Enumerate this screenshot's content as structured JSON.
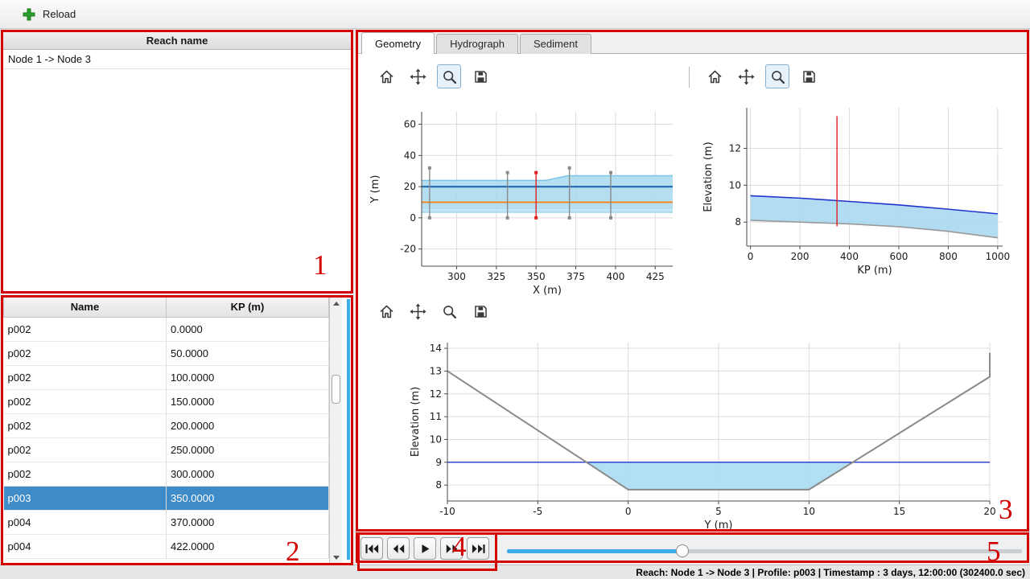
{
  "colors": {
    "selection": "#3e8bc8",
    "accent": "#3daee9",
    "annotation": "#d40000"
  },
  "toolbar": {
    "reload_label": "Reload"
  },
  "reach_panel": {
    "header": "Reach name",
    "items": [
      "Node 1 -> Node 3"
    ]
  },
  "profile_table": {
    "columns": [
      "Name",
      "KP (m)"
    ],
    "selected_index": 7,
    "rows": [
      [
        "p002",
        "0.0000"
      ],
      [
        "p002",
        "50.0000"
      ],
      [
        "p002",
        "100.0000"
      ],
      [
        "p002",
        "150.0000"
      ],
      [
        "p002",
        "200.0000"
      ],
      [
        "p002",
        "250.0000"
      ],
      [
        "p002",
        "300.0000"
      ],
      [
        "p003",
        "350.0000"
      ],
      [
        "p004",
        "370.0000"
      ],
      [
        "p004",
        "422.0000"
      ]
    ]
  },
  "tabs": {
    "items": [
      {
        "label": "Geometry",
        "active": true
      },
      {
        "label": "Hydrograph",
        "active": false
      },
      {
        "label": "Sediment",
        "active": false
      }
    ]
  },
  "plot_toolbars": [
    {
      "buttons": [
        "home",
        "pan",
        "zoom",
        "save"
      ],
      "active": "zoom"
    },
    {
      "buttons": [
        "home",
        "pan",
        "zoom",
        "save"
      ],
      "active": "zoom"
    },
    {
      "buttons": [
        "home",
        "pan",
        "zoom",
        "save"
      ],
      "active": null
    }
  ],
  "player": {
    "buttons": [
      "skip-start",
      "rewind",
      "play",
      "fast-forward",
      "skip-end"
    ],
    "slider_value_percent": 34
  },
  "status_bar": {
    "text": "Reach: Node 1 -> Node 3 | Profile: p003 | Timestamp : 3 days, 12:00:00 (302400.0 sec)"
  },
  "annotations": {
    "labels": [
      "1",
      "2",
      "3",
      "4",
      "5"
    ]
  },
  "chart_data": [
    {
      "type": "line",
      "name": "plan-view",
      "xlabel": "X (m)",
      "ylabel": "Y (m)",
      "xlim": [
        278,
        436
      ],
      "ylim": [
        -31,
        68
      ],
      "xticks": [
        300,
        325,
        350,
        375,
        400,
        425
      ],
      "yticks": [
        -20,
        0,
        20,
        40,
        60
      ],
      "fills": [
        {
          "points": [
            [
              278,
              24
            ],
            [
              356,
              24
            ],
            [
              370,
              27
            ],
            [
              436,
              27
            ],
            [
              436,
              3
            ],
            [
              278,
              3
            ]
          ],
          "color": "#a8d8ef",
          "opacity": 0.85
        }
      ],
      "lines": [
        {
          "name": "band-top-edge",
          "points": [
            [
              278,
              24
            ],
            [
              356,
              24
            ],
            [
              370,
              27
            ],
            [
              436,
              27
            ]
          ],
          "color": "#7cc4e4",
          "width": 1.5
        },
        {
          "name": "band-bottom-edge",
          "points": [
            [
              278,
              5
            ],
            [
              436,
              5
            ]
          ],
          "color": "#cfeaf7",
          "width": 1.5
        },
        {
          "name": "channel-line",
          "points": [
            [
              278,
              20
            ],
            [
              436,
              20
            ]
          ],
          "color": "#2b6fb3",
          "width": 2.2
        },
        {
          "name": "reference-line",
          "points": [
            [
              278,
              10
            ],
            [
              436,
              10
            ]
          ],
          "color": "#ff7f0e",
          "width": 1.8
        }
      ],
      "vlines": [
        {
          "x": 283,
          "y0": 0,
          "y1": 32,
          "color": "#8a8a8a",
          "marker": true
        },
        {
          "x": 332,
          "y0": 0,
          "y1": 29,
          "color": "#8a8a8a",
          "marker": true
        },
        {
          "x": 350,
          "y0": 0,
          "y1": 29,
          "color": "#e01f1f",
          "marker": true
        },
        {
          "x": 371,
          "y0": 0,
          "y1": 32,
          "color": "#8a8a8a",
          "marker": true
        },
        {
          "x": 397,
          "y0": 0,
          "y1": 29,
          "color": "#8a8a8a",
          "marker": true
        }
      ]
    },
    {
      "type": "line",
      "name": "longitudinal-profile",
      "xlabel": "KP (m)",
      "ylabel": "Elevation (m)",
      "xlim": [
        -15,
        1020
      ],
      "ylim": [
        6.7,
        14.2
      ],
      "xticks": [
        0,
        200,
        400,
        600,
        800,
        1000
      ],
      "yticks": [
        8,
        10,
        12
      ],
      "fills": [
        {
          "points": [
            [
              0,
              9.43
            ],
            [
              200,
              9.3
            ],
            [
              400,
              9.12
            ],
            [
              600,
              8.93
            ],
            [
              800,
              8.7
            ],
            [
              1000,
              8.45
            ],
            [
              1000,
              7.15
            ],
            [
              800,
              7.5
            ],
            [
              600,
              7.75
            ],
            [
              400,
              7.9
            ],
            [
              200,
              8.0
            ],
            [
              0,
              8.1
            ]
          ],
          "color": "#a8d8ef",
          "opacity": 0.9
        }
      ],
      "lines": [
        {
          "name": "water-surface",
          "points": [
            [
              0,
              9.43
            ],
            [
              200,
              9.3
            ],
            [
              400,
              9.12
            ],
            [
              600,
              8.93
            ],
            [
              800,
              8.7
            ],
            [
              1000,
              8.45
            ]
          ],
          "color": "#2233cc",
          "width": 1.6
        },
        {
          "name": "bed-profile",
          "points": [
            [
              0,
              8.1
            ],
            [
              200,
              8.0
            ],
            [
              400,
              7.9
            ],
            [
              600,
              7.75
            ],
            [
              800,
              7.5
            ],
            [
              1000,
              7.15
            ]
          ],
          "color": "#999999",
          "width": 1.6
        }
      ],
      "vlines": [
        {
          "x": 350,
          "y0": 7.78,
          "y1": 13.75,
          "color": "#e01f1f"
        }
      ]
    },
    {
      "type": "line",
      "name": "cross-section",
      "xlabel": "Y (m)",
      "ylabel": "Elevation (m)",
      "xlim": [
        -10,
        20
      ],
      "ylim": [
        7.3,
        14.25
      ],
      "xticks": [
        -10,
        -5,
        0,
        5,
        10,
        15,
        20
      ],
      "yticks": [
        8,
        9,
        10,
        11,
        12,
        13,
        14
      ],
      "fills": [
        {
          "points": [
            [
              -2.31,
              9
            ],
            [
              12.42,
              9
            ],
            [
              10,
              7.8
            ],
            [
              0,
              7.8
            ]
          ],
          "color": "#aadcf2",
          "opacity": 0.9
        }
      ],
      "lines": [
        {
          "name": "water-level",
          "points": [
            [
              -10,
              9
            ],
            [
              20,
              9
            ]
          ],
          "color": "#2233cc",
          "width": 1.4
        },
        {
          "name": "bed",
          "points": [
            [
              -10,
              13.0
            ],
            [
              0,
              7.8
            ],
            [
              10,
              7.8
            ],
            [
              20,
              12.75
            ],
            [
              20,
              13.8
            ]
          ],
          "color": "#8a8a8a",
          "width": 2
        }
      ]
    }
  ]
}
